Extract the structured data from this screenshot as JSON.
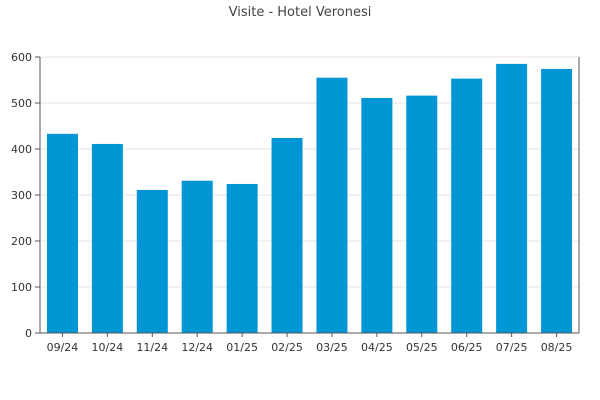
{
  "chart_data": {
    "type": "bar",
    "title": "Visite - Hotel Veronesi",
    "xlabel": "",
    "ylabel": "",
    "categories": [
      "09/24",
      "10/24",
      "11/24",
      "12/24",
      "01/25",
      "02/25",
      "03/25",
      "04/25",
      "05/25",
      "06/25",
      "07/25",
      "08/25"
    ],
    "values": [
      433,
      411,
      311,
      331,
      324,
      424,
      555,
      511,
      516,
      553,
      585,
      574
    ],
    "ylim": [
      0,
      600
    ],
    "yticks": [
      0,
      100,
      200,
      300,
      400,
      500,
      600
    ],
    "grid": true,
    "legend": "none",
    "bar_color": "#0096d6"
  }
}
